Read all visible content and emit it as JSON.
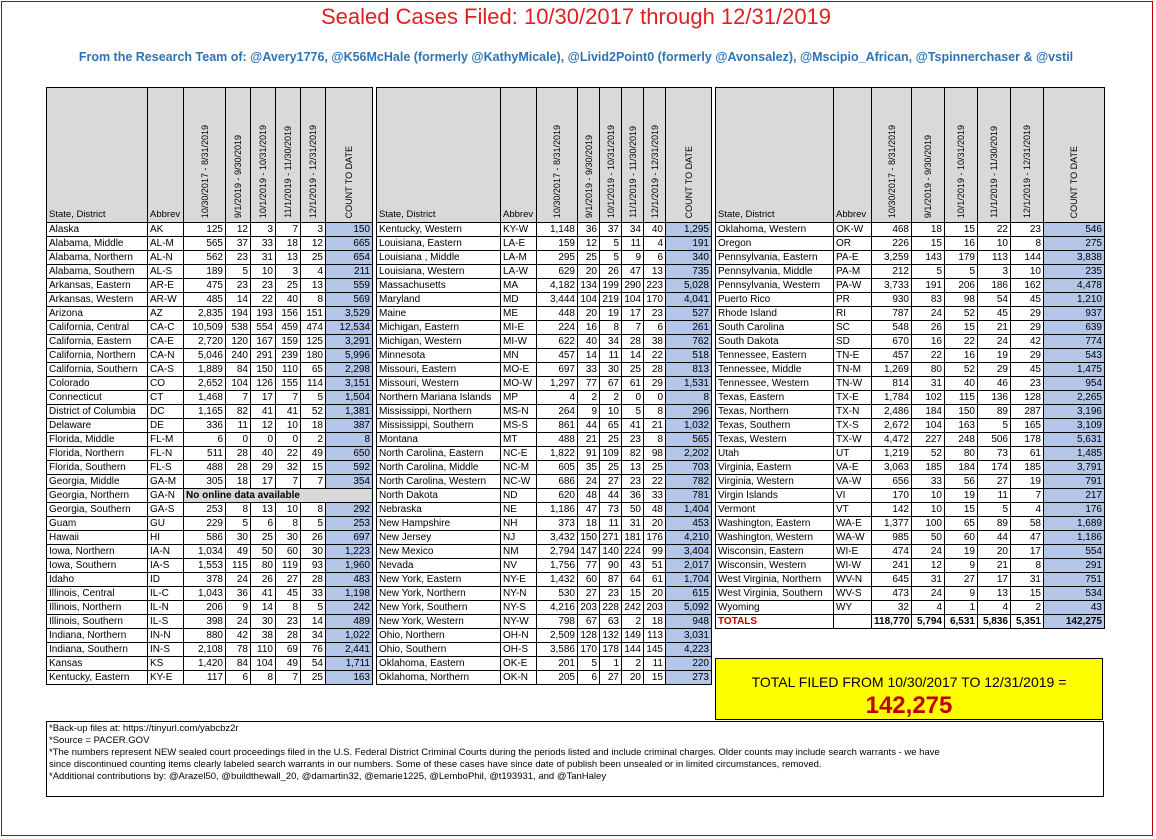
{
  "title": "Sealed Cases Filed: 10/30/2017 through 12/31/2019",
  "subtitle": "From the Research Team of: @Avery1776, @K56McHale (formerly @KathyMicale), @Livid2Point0 (formerly @Avonsalez), @Mscipio_African, @Tspinnerchaser & @vstil",
  "headers": {
    "state": "State, District",
    "abbrev": "Abbrev",
    "periods": [
      "10/30/2017 - 8/31/2019",
      "9/1/2019 - 9/30/2019",
      "10/1/2019 - 10/31/2019",
      "11/1/2019 - 11/30/2019",
      "12/1/2019 - 12/31/2019"
    ],
    "count": "COUNT TO DATE"
  },
  "blocks": [
    [
      [
        "Alaska",
        "AK",
        "125",
        "12",
        "3",
        "7",
        "3",
        "150"
      ],
      [
        "Alabama, Middle",
        "AL-M",
        "565",
        "37",
        "33",
        "18",
        "12",
        "665"
      ],
      [
        "Alabama, Northern",
        "AL-N",
        "562",
        "23",
        "31",
        "13",
        "25",
        "654"
      ],
      [
        "Alabama, Southern",
        "AL-S",
        "189",
        "5",
        "10",
        "3",
        "4",
        "211"
      ],
      [
        "Arkansas, Eastern",
        "AR-E",
        "475",
        "23",
        "23",
        "25",
        "13",
        "559"
      ],
      [
        "Arkansas, Western",
        "AR-W",
        "485",
        "14",
        "22",
        "40",
        "8",
        "569"
      ],
      [
        "Arizona",
        "AZ",
        "2,835",
        "194",
        "193",
        "156",
        "151",
        "3,529"
      ],
      [
        "California, Central",
        "CA-C",
        "10,509",
        "538",
        "554",
        "459",
        "474",
        "12,534"
      ],
      [
        "California, Eastern",
        "CA-E",
        "2,720",
        "120",
        "167",
        "159",
        "125",
        "3,291"
      ],
      [
        "California, Northern",
        "CA-N",
        "5,046",
        "240",
        "291",
        "239",
        "180",
        "5,996"
      ],
      [
        "California, Southern",
        "CA-S",
        "1,889",
        "84",
        "150",
        "110",
        "65",
        "2,298"
      ],
      [
        "Colorado",
        "CO",
        "2,652",
        "104",
        "126",
        "155",
        "114",
        "3,151"
      ],
      [
        "Connecticut",
        "CT",
        "1,468",
        "7",
        "17",
        "7",
        "5",
        "1,504"
      ],
      [
        "District of Columbia",
        "DC",
        "1,165",
        "82",
        "41",
        "41",
        "52",
        "1,381"
      ],
      [
        "Delaware",
        "DE",
        "336",
        "11",
        "12",
        "10",
        "18",
        "387"
      ],
      [
        "Florida, Middle",
        "FL-M",
        "6",
        "0",
        "0",
        "0",
        "2",
        "8"
      ],
      [
        "Florida, Northern",
        "FL-N",
        "511",
        "28",
        "40",
        "22",
        "49",
        "650"
      ],
      [
        "Florida, Southern",
        "FL-S",
        "488",
        "28",
        "29",
        "32",
        "15",
        "592"
      ],
      [
        "Georgia, Middle",
        "GA-M",
        "305",
        "18",
        "17",
        "7",
        "7",
        "354"
      ],
      [
        "Georgia, Northern",
        "GA-N",
        "No online data available",
        "",
        "",
        "",
        "",
        ""
      ],
      [
        "Georgia, Southern",
        "GA-S",
        "253",
        "8",
        "13",
        "10",
        "8",
        "292"
      ],
      [
        "Guam",
        "GU",
        "229",
        "5",
        "6",
        "8",
        "5",
        "253"
      ],
      [
        "Hawaii",
        "HI",
        "586",
        "30",
        "25",
        "30",
        "26",
        "697"
      ],
      [
        "Iowa, Northern",
        "IA-N",
        "1,034",
        "49",
        "50",
        "60",
        "30",
        "1,223"
      ],
      [
        "Iowa, Southern",
        "IA-S",
        "1,553",
        "115",
        "80",
        "119",
        "93",
        "1,960"
      ],
      [
        "Idaho",
        "ID",
        "378",
        "24",
        "26",
        "27",
        "28",
        "483"
      ],
      [
        "Illinois, Central",
        "IL-C",
        "1,043",
        "36",
        "41",
        "45",
        "33",
        "1,198"
      ],
      [
        "Illinois, Northern",
        "IL-N",
        "206",
        "9",
        "14",
        "8",
        "5",
        "242"
      ],
      [
        "Illinois, Southern",
        "IL-S",
        "398",
        "24",
        "30",
        "23",
        "14",
        "489"
      ],
      [
        "Indiana, Northern",
        "IN-N",
        "880",
        "42",
        "38",
        "28",
        "34",
        "1,022"
      ],
      [
        "Indiana, Southern",
        "IN-S",
        "2,108",
        "78",
        "110",
        "69",
        "76",
        "2,441"
      ],
      [
        "Kansas",
        "KS",
        "1,420",
        "84",
        "104",
        "49",
        "54",
        "1,711"
      ],
      [
        "Kentucky, Eastern",
        "KY-E",
        "117",
        "6",
        "8",
        "7",
        "25",
        "163"
      ]
    ],
    [
      [
        "Kentucky, Western",
        "KY-W",
        "1,148",
        "36",
        "37",
        "34",
        "40",
        "1,295"
      ],
      [
        "Louisiana, Eastern",
        "LA-E",
        "159",
        "12",
        "5",
        "11",
        "4",
        "191"
      ],
      [
        "Louisiana , Middle",
        "LA-M",
        "295",
        "25",
        "5",
        "9",
        "6",
        "340"
      ],
      [
        "Louisiana, Western",
        "LA-W",
        "629",
        "20",
        "26",
        "47",
        "13",
        "735"
      ],
      [
        "Massachusetts",
        "MA",
        "4,182",
        "134",
        "199",
        "290",
        "223",
        "5,028"
      ],
      [
        "Maryland",
        "MD",
        "3,444",
        "104",
        "219",
        "104",
        "170",
        "4,041"
      ],
      [
        "Maine",
        "ME",
        "448",
        "20",
        "19",
        "17",
        "23",
        "527"
      ],
      [
        "Michigan, Eastern",
        "MI-E",
        "224",
        "16",
        "8",
        "7",
        "6",
        "261"
      ],
      [
        "Michigan, Western",
        "MI-W",
        "622",
        "40",
        "34",
        "28",
        "38",
        "762"
      ],
      [
        "Minnesota",
        "MN",
        "457",
        "14",
        "11",
        "14",
        "22",
        "518"
      ],
      [
        "Missouri, Eastern",
        "MO-E",
        "697",
        "33",
        "30",
        "25",
        "28",
        "813"
      ],
      [
        "Missouri, Western",
        "MO-W",
        "1,297",
        "77",
        "67",
        "61",
        "29",
        "1,531"
      ],
      [
        "Northern Mariana Islands",
        "MP",
        "4",
        "2",
        "2",
        "0",
        "0",
        "8"
      ],
      [
        "Mississippi, Northern",
        "MS-N",
        "264",
        "9",
        "10",
        "5",
        "8",
        "296"
      ],
      [
        "Mississippi, Southern",
        "MS-S",
        "861",
        "44",
        "65",
        "41",
        "21",
        "1,032"
      ],
      [
        "Montana",
        "MT",
        "488",
        "21",
        "25",
        "23",
        "8",
        "565"
      ],
      [
        "North Carolina, Eastern",
        "NC-E",
        "1,822",
        "91",
        "109",
        "82",
        "98",
        "2,202"
      ],
      [
        "North Carolina, Middle",
        "NC-M",
        "605",
        "35",
        "25",
        "13",
        "25",
        "703"
      ],
      [
        "North Carolina, Western",
        "NC-W",
        "686",
        "24",
        "27",
        "23",
        "22",
        "782"
      ],
      [
        "North Dakota",
        "ND",
        "620",
        "48",
        "44",
        "36",
        "33",
        "781"
      ],
      [
        "Nebraska",
        "NE",
        "1,186",
        "47",
        "73",
        "50",
        "48",
        "1,404"
      ],
      [
        "New Hampshire",
        "NH",
        "373",
        "18",
        "11",
        "31",
        "20",
        "453"
      ],
      [
        "New Jersey",
        "NJ",
        "3,432",
        "150",
        "271",
        "181",
        "176",
        "4,210"
      ],
      [
        "New Mexico",
        "NM",
        "2,794",
        "147",
        "140",
        "224",
        "99",
        "3,404"
      ],
      [
        "Nevada",
        "NV",
        "1,756",
        "77",
        "90",
        "43",
        "51",
        "2,017"
      ],
      [
        "New York, Eastern",
        "NY-E",
        "1,432",
        "60",
        "87",
        "64",
        "61",
        "1,704"
      ],
      [
        "New York, Northern",
        "NY-N",
        "530",
        "27",
        "23",
        "15",
        "20",
        "615"
      ],
      [
        "New York, Southern",
        "NY-S",
        "4,216",
        "203",
        "228",
        "242",
        "203",
        "5,092"
      ],
      [
        "New York, Western",
        "NY-W",
        "798",
        "67",
        "63",
        "2",
        "18",
        "948"
      ],
      [
        "Ohio, Northern",
        "OH-N",
        "2,509",
        "128",
        "132",
        "149",
        "113",
        "3,031"
      ],
      [
        "Ohio, Southern",
        "OH-S",
        "3,586",
        "170",
        "178",
        "144",
        "145",
        "4,223"
      ],
      [
        "Oklahoma, Eastern",
        "OK-E",
        "201",
        "5",
        "1",
        "2",
        "11",
        "220"
      ],
      [
        "Oklahoma, Northern",
        "OK-N",
        "205",
        "6",
        "27",
        "20",
        "15",
        "273"
      ]
    ],
    [
      [
        "Oklahoma, Western",
        "OK-W",
        "468",
        "18",
        "15",
        "22",
        "23",
        "546"
      ],
      [
        "Oregon",
        "OR",
        "226",
        "15",
        "16",
        "10",
        "8",
        "275"
      ],
      [
        "Pennsylvania, Eastern",
        "PA-E",
        "3,259",
        "143",
        "179",
        "113",
        "144",
        "3,838"
      ],
      [
        "Pennsylvania, Middle",
        "PA-M",
        "212",
        "5",
        "5",
        "3",
        "10",
        "235"
      ],
      [
        "Pennsylvania, Western",
        "PA-W",
        "3,733",
        "191",
        "206",
        "186",
        "162",
        "4,478"
      ],
      [
        "Puerto Rico",
        "PR",
        "930",
        "83",
        "98",
        "54",
        "45",
        "1,210"
      ],
      [
        "Rhode Island",
        "RI",
        "787",
        "24",
        "52",
        "45",
        "29",
        "937"
      ],
      [
        "South Carolina",
        "SC",
        "548",
        "26",
        "15",
        "21",
        "29",
        "639"
      ],
      [
        "South Dakota",
        "SD",
        "670",
        "16",
        "22",
        "24",
        "42",
        "774"
      ],
      [
        "Tennessee, Eastern",
        "TN-E",
        "457",
        "22",
        "16",
        "19",
        "29",
        "543"
      ],
      [
        "Tennessee, Middle",
        "TN-M",
        "1,269",
        "80",
        "52",
        "29",
        "45",
        "1,475"
      ],
      [
        "Tennessee, Western",
        "TN-W",
        "814",
        "31",
        "40",
        "46",
        "23",
        "954"
      ],
      [
        "Texas, Eastern",
        "TX-E",
        "1,784",
        "102",
        "115",
        "136",
        "128",
        "2,265"
      ],
      [
        "Texas, Northern",
        "TX-N",
        "2,486",
        "184",
        "150",
        "89",
        "287",
        "3,196"
      ],
      [
        "Texas, Southern",
        "TX-S",
        "2,672",
        "104",
        "163",
        "5",
        "165",
        "3,109"
      ],
      [
        "Texas, Western",
        "TX-W",
        "4,472",
        "227",
        "248",
        "506",
        "178",
        "5,631"
      ],
      [
        "Utah",
        "UT",
        "1,219",
        "52",
        "80",
        "73",
        "61",
        "1,485"
      ],
      [
        "Virginia, Eastern",
        "VA-E",
        "3,063",
        "185",
        "184",
        "174",
        "185",
        "3,791"
      ],
      [
        "Virginia, Western",
        "VA-W",
        "656",
        "33",
        "56",
        "27",
        "19",
        "791"
      ],
      [
        "Virgin Islands",
        "VI",
        "170",
        "10",
        "19",
        "11",
        "7",
        "217"
      ],
      [
        "Vermont",
        "VT",
        "142",
        "10",
        "15",
        "5",
        "4",
        "176"
      ],
      [
        "Washington, Eastern",
        "WA-E",
        "1,377",
        "100",
        "65",
        "89",
        "58",
        "1,689"
      ],
      [
        "Washington, Western",
        "WA-W",
        "985",
        "50",
        "60",
        "44",
        "47",
        "1,186"
      ],
      [
        "Wisconsin, Eastern",
        "WI-E",
        "474",
        "24",
        "19",
        "20",
        "17",
        "554"
      ],
      [
        "Wisconsin, Western",
        "WI-W",
        "241",
        "12",
        "9",
        "21",
        "8",
        "291"
      ],
      [
        "West Virginia, Northern",
        "WV-N",
        "645",
        "31",
        "27",
        "17",
        "31",
        "751"
      ],
      [
        "West Virginia, Southern",
        "WV-S",
        "473",
        "24",
        "9",
        "13",
        "15",
        "534"
      ],
      [
        "Wyoming",
        "WY",
        "32",
        "4",
        "1",
        "4",
        "2",
        "43"
      ]
    ]
  ],
  "totals": [
    "TOTALS",
    "",
    "118,770",
    "5,794",
    "6,531",
    "5,836",
    "5,351",
    "142,275"
  ],
  "grand_total": {
    "label": "TOTAL FILED FROM 10/30/2017 TO 12/31/2019 =",
    "value": "142,275"
  },
  "notes": [
    "*Back-up files at: https://tinyurl.com/yabcbz2r",
    "*Source = PACER.GOV",
    "*The numbers represent NEW sealed court proceedings filed in the U.S. Federal District Criminal Courts during the periods listed and include criminal charges. Older counts may include search warrants - we have",
    "since discontinued counting items clearly labeled search warrants in our numbers. Some of these cases have since date of publish been unsealed or in limited circumstances, removed.",
    "*Additional contributions by: @Arazel50, @buildthewall_20, @damartin32, @emarie1225, @LemboPhil, @t193931, and @TanHaley"
  ],
  "colors": {
    "title": "#e02020",
    "subtitle": "#2e74b5",
    "count_fill": "#b4c6e7",
    "header_fill": "#d9d9d9",
    "total_box": "#ffff00",
    "total_value": "#c00000"
  }
}
